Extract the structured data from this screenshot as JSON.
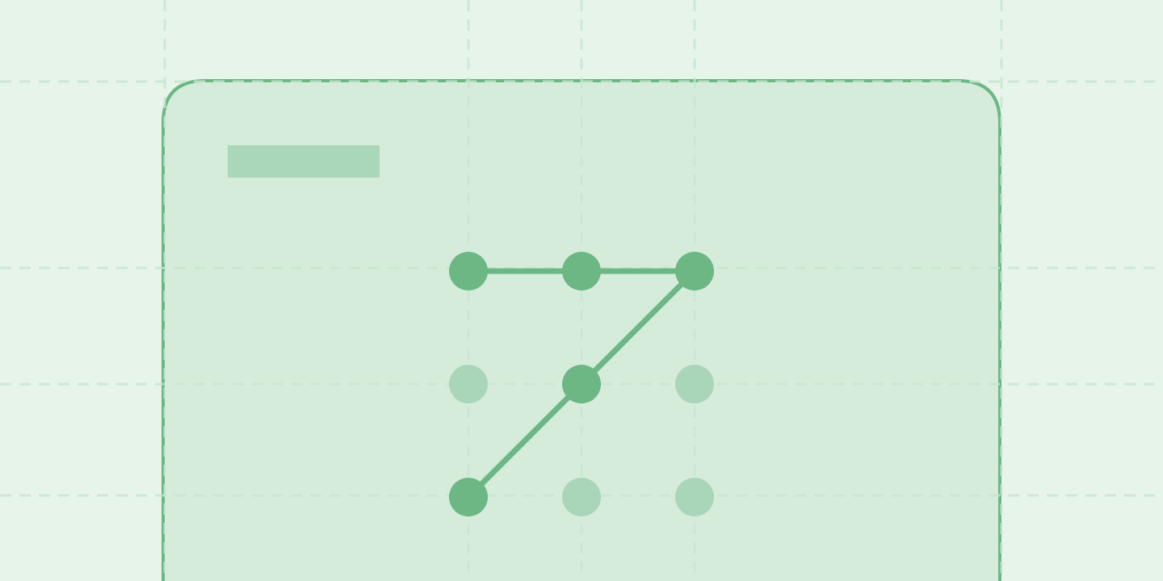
{
  "colors": {
    "background": "#e7f4ea",
    "grid": "#c5e6cf",
    "card_fill": "#d5ecdb",
    "card_border": "#6db784",
    "title_placeholder": "#aad6b9",
    "dot_active": "#6db784",
    "dot_inactive": "#a9d6b8",
    "pattern_line": "#6db784"
  },
  "pattern_lock": {
    "grid_size": 3,
    "active_dots": [
      0,
      1,
      2,
      4,
      6
    ],
    "sequence": [
      0,
      1,
      2,
      4,
      6
    ]
  }
}
